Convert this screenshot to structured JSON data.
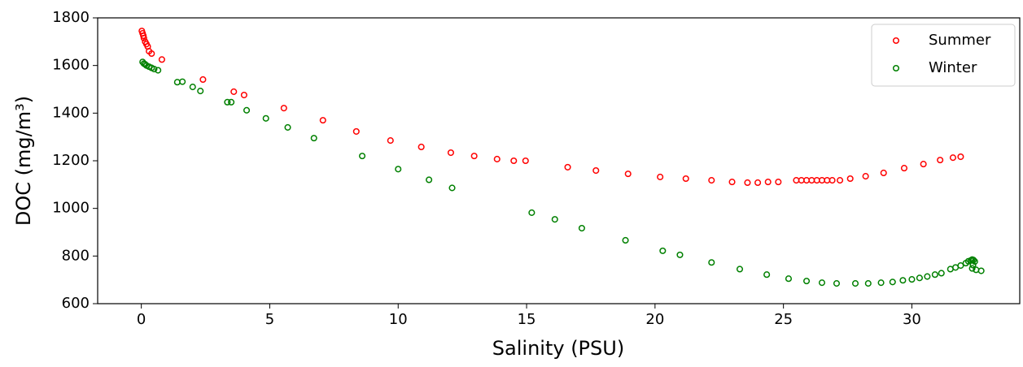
{
  "chart_data": {
    "type": "scatter",
    "xlabel": "Salinity (PSU)",
    "ylabel": "DOC (mg/m³)",
    "xlim": [
      -1.7,
      34.2
    ],
    "ylim": [
      600,
      1800
    ],
    "xticks": [
      0,
      5,
      10,
      15,
      20,
      25,
      30
    ],
    "yticks": [
      600,
      800,
      1000,
      1200,
      1400,
      1600,
      1800
    ],
    "legend": "upper right",
    "series": [
      {
        "name": "Summer",
        "color": "#ff0000",
        "x": [
          0.02,
          0.05,
          0.08,
          0.1,
          0.15,
          0.2,
          0.25,
          0.3,
          0.4,
          0.8,
          2.4,
          3.6,
          4.0,
          5.55,
          7.07,
          8.37,
          9.7,
          10.9,
          12.05,
          12.96,
          13.85,
          14.5,
          14.96,
          16.6,
          17.7,
          18.95,
          20.2,
          21.2,
          22.2,
          23.0,
          23.6,
          24.0,
          24.4,
          24.8,
          25.5,
          25.7,
          25.9,
          26.1,
          26.3,
          26.5,
          26.7,
          26.9,
          27.2,
          27.6,
          28.2,
          28.9,
          29.7,
          30.45,
          31.1,
          31.6,
          31.9
        ],
        "values": [
          1745,
          1735,
          1725,
          1715,
          1700,
          1690,
          1680,
          1660,
          1650,
          1625,
          1541,
          1490,
          1476,
          1421,
          1370,
          1323,
          1285,
          1258,
          1234,
          1220,
          1207,
          1200,
          1200,
          1173,
          1159,
          1145,
          1132,
          1125,
          1118,
          1111,
          1108,
          1108,
          1111,
          1111,
          1118,
          1118,
          1118,
          1118,
          1118,
          1118,
          1118,
          1118,
          1118,
          1125,
          1135,
          1149,
          1169,
          1186,
          1203,
          1213,
          1217
        ]
      },
      {
        "name": "Winter",
        "color": "#008000",
        "x": [
          0.05,
          0.1,
          0.15,
          0.2,
          0.3,
          0.4,
          0.5,
          0.65,
          1.4,
          1.6,
          2.0,
          2.3,
          3.35,
          3.5,
          4.1,
          4.85,
          5.7,
          6.72,
          8.6,
          10.0,
          11.2,
          12.1,
          15.2,
          16.1,
          17.15,
          18.85,
          20.3,
          20.97,
          22.2,
          23.3,
          24.35,
          25.2,
          25.9,
          26.5,
          27.07,
          27.8,
          28.3,
          28.8,
          29.25,
          29.65,
          30.0,
          30.3,
          30.6,
          30.9,
          31.15,
          31.5,
          31.7,
          31.9,
          32.1,
          32.2,
          32.3,
          32.35,
          32.4,
          32.45,
          32.38,
          32.35,
          32.5,
          32.7
        ],
        "values": [
          1615,
          1608,
          1605,
          1600,
          1595,
          1590,
          1585,
          1580,
          1530,
          1532,
          1510,
          1493,
          1446,
          1446,
          1412,
          1378,
          1340,
          1295,
          1220,
          1165,
          1120,
          1086,
          982,
          954,
          917,
          866,
          822,
          805,
          773,
          745,
          722,
          705,
          695,
          688,
          685,
          685,
          685,
          688,
          691,
          698,
          702,
          708,
          714,
          722,
          728,
          745,
          752,
          760,
          770,
          778,
          782,
          785,
          783,
          777,
          762,
          748,
          742,
          738
        ]
      }
    ]
  }
}
